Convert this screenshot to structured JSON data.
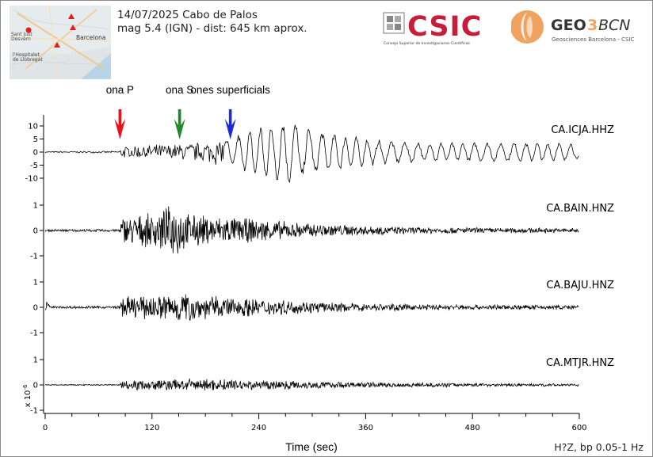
{
  "event": {
    "title": "14/07/2025 Cabo de Palos",
    "info": "mag 5.4 (IGN) - dist: 645 km aprox."
  },
  "map": {
    "city_label": "Barcelona",
    "label_left": "Sant Just\nDesvern",
    "label_bottom": "l'Hospitalet\nde Llobregat"
  },
  "logos": {
    "csic_text": "CSIC",
    "csic_subtitle": "Consejo Superior de Investigaciones Científicas",
    "geo_text": "GEO",
    "geo_number": "3",
    "geo_bcn": "BCN",
    "geo_subtitle": "Geosciences Barcelona - CSIC"
  },
  "colors": {
    "csic_red": "#c41e3a",
    "geo_orange": "#f0a35e",
    "p_arrow": "#e8141c",
    "s_arrow": "#1f8a2a",
    "surface_arrow": "#1c2bd8"
  },
  "chart_data": {
    "type": "line",
    "xlabel": "Time (sec)",
    "xlim": [
      0,
      600
    ],
    "xticks": [
      0,
      120,
      240,
      360,
      480,
      600
    ],
    "scale_label": "x 10",
    "scale_exponent": "-6",
    "filter_note": "H?Z, bp 0.05-1 Hz",
    "phases": [
      {
        "name": "ona P",
        "time": 84,
        "color": "#e8141c"
      },
      {
        "name": "ona S",
        "time": 151,
        "color": "#1f8a2a"
      },
      {
        "name": "ones superficials",
        "time": 208,
        "color": "#1c2bd8"
      }
    ],
    "traces": [
      {
        "name": "CA.ICJA.HHZ",
        "yticks": [
          10,
          5,
          0,
          -5,
          -10
        ],
        "ylim": [
          -15,
          15
        ],
        "p_time": 84,
        "envelope": [
          [
            0,
            0.3
          ],
          [
            84,
            0.4
          ],
          [
            85,
            2.5
          ],
          [
            150,
            3.5
          ],
          [
            180,
            4.5
          ],
          [
            205,
            6
          ],
          [
            230,
            9
          ],
          [
            250,
            13
          ],
          [
            270,
            14
          ],
          [
            290,
            11
          ],
          [
            320,
            8
          ],
          [
            380,
            5
          ],
          [
            450,
            4
          ],
          [
            520,
            4
          ],
          [
            600,
            4
          ]
        ]
      },
      {
        "name": "CA.BAIN.HNZ",
        "yticks": [
          1,
          0,
          -1
        ],
        "ylim": [
          -1.7,
          1.7
        ],
        "p_time": 84,
        "envelope": [
          [
            0,
            0.05
          ],
          [
            84,
            0.06
          ],
          [
            86,
            0.6
          ],
          [
            120,
            0.7
          ],
          [
            150,
            1.2
          ],
          [
            160,
            0.7
          ],
          [
            200,
            0.6
          ],
          [
            250,
            0.45
          ],
          [
            300,
            0.3
          ],
          [
            400,
            0.15
          ],
          [
            500,
            0.12
          ],
          [
            600,
            0.1
          ]
        ]
      },
      {
        "name": "CA.BAJU.HNZ",
        "yticks": [
          1,
          0,
          -1
        ],
        "ylim": [
          -1.7,
          1.7
        ],
        "p_time": 84,
        "envelope": [
          [
            0,
            0.05
          ],
          [
            84,
            0.06
          ],
          [
            86,
            0.45
          ],
          [
            120,
            0.5
          ],
          [
            150,
            0.7
          ],
          [
            180,
            0.5
          ],
          [
            250,
            0.35
          ],
          [
            320,
            0.2
          ],
          [
            420,
            0.12
          ],
          [
            600,
            0.09
          ]
        ]
      },
      {
        "name": "CA.MTJR.HNZ",
        "yticks": [
          1,
          0,
          -1
        ],
        "ylim": [
          -1.7,
          1.7
        ],
        "p_time": 84,
        "envelope": [
          [
            0,
            0.02
          ],
          [
            84,
            0.03
          ],
          [
            86,
            0.2
          ],
          [
            150,
            0.25
          ],
          [
            200,
            0.25
          ],
          [
            260,
            0.2
          ],
          [
            350,
            0.12
          ],
          [
            450,
            0.08
          ],
          [
            600,
            0.05
          ]
        ]
      }
    ]
  }
}
